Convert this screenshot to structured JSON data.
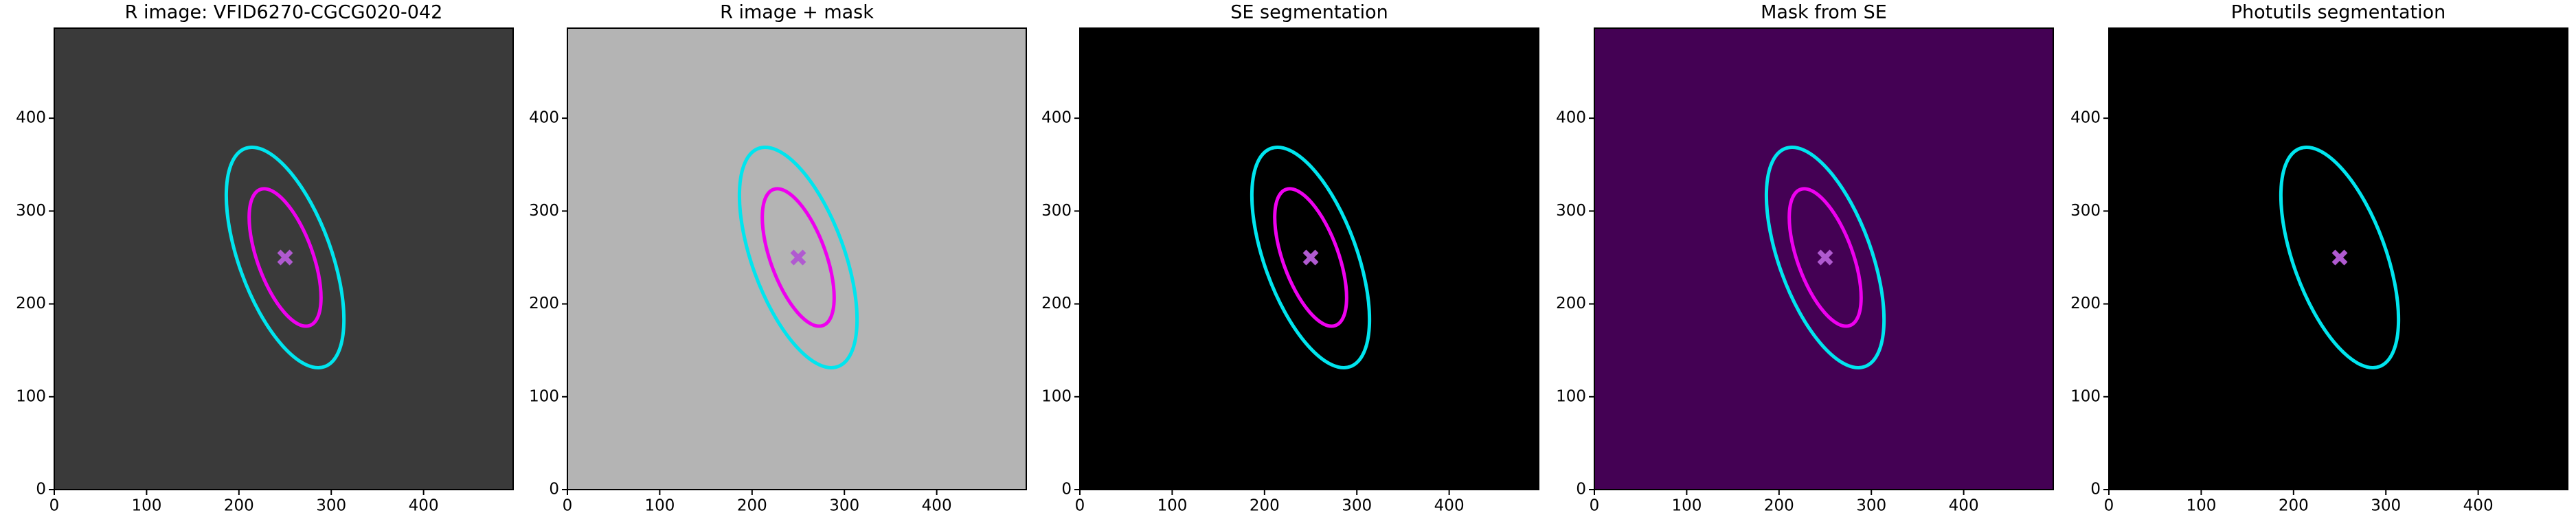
{
  "chart_data": [
    {
      "type": "image",
      "title": "R image: VFID6270-CGCG020-042",
      "background": "#3a3a3a",
      "xlim": [
        0,
        497
      ],
      "ylim": [
        0,
        497
      ],
      "xticks": [
        0,
        100,
        200,
        300,
        400
      ],
      "yticks": [
        0,
        100,
        200,
        300,
        400
      ],
      "ellipses": [
        {
          "x": 250,
          "y": 250,
          "a": 125,
          "b": 50,
          "angle": 20,
          "color": "#00e5ee"
        },
        {
          "x": 250,
          "y": 250,
          "a": 78,
          "b": 30,
          "angle": 20,
          "color": "#ee00ee"
        }
      ],
      "center": {
        "x": 250,
        "y": 250,
        "color": "#b05ad0"
      }
    },
    {
      "type": "image",
      "title": "R image + mask",
      "background": "#b4b4b4",
      "xlim": [
        0,
        497
      ],
      "ylim": [
        0,
        497
      ],
      "xticks": [
        0,
        100,
        200,
        300,
        400
      ],
      "yticks": [
        0,
        100,
        200,
        300,
        400
      ],
      "ellipses": [
        {
          "x": 250,
          "y": 250,
          "a": 125,
          "b": 50,
          "angle": 20,
          "color": "#00e5ee"
        },
        {
          "x": 250,
          "y": 250,
          "a": 78,
          "b": 30,
          "angle": 20,
          "color": "#ee00ee"
        }
      ],
      "center": {
        "x": 250,
        "y": 250,
        "color": "#b05ad0"
      }
    },
    {
      "type": "image",
      "title": "SE segmentation",
      "background": "#000000",
      "xlim": [
        0,
        497
      ],
      "ylim": [
        0,
        497
      ],
      "xticks": [
        0,
        100,
        200,
        300,
        400
      ],
      "yticks": [
        0,
        100,
        200,
        300,
        400
      ],
      "ellipses": [
        {
          "x": 250,
          "y": 250,
          "a": 125,
          "b": 50,
          "angle": 20,
          "color": "#00e5ee"
        },
        {
          "x": 250,
          "y": 250,
          "a": 78,
          "b": 30,
          "angle": 20,
          "color": "#ee00ee"
        }
      ],
      "center": {
        "x": 250,
        "y": 250,
        "color": "#b05ad0"
      }
    },
    {
      "type": "image",
      "title": "Mask from SE",
      "background": "#440154",
      "xlim": [
        0,
        497
      ],
      "ylim": [
        0,
        497
      ],
      "xticks": [
        0,
        100,
        200,
        300,
        400
      ],
      "yticks": [
        0,
        100,
        200,
        300,
        400
      ],
      "ellipses": [
        {
          "x": 250,
          "y": 250,
          "a": 125,
          "b": 50,
          "angle": 20,
          "color": "#00e5ee"
        },
        {
          "x": 250,
          "y": 250,
          "a": 78,
          "b": 30,
          "angle": 20,
          "color": "#ee00ee"
        }
      ],
      "center": {
        "x": 250,
        "y": 250,
        "color": "#b05ad0"
      }
    },
    {
      "type": "image",
      "title": "Photutils segmentation",
      "background": "#000000",
      "xlim": [
        0,
        497
      ],
      "ylim": [
        0,
        497
      ],
      "xticks": [
        0,
        100,
        200,
        300,
        400
      ],
      "yticks": [
        0,
        100,
        200,
        300,
        400
      ],
      "ellipses": [
        {
          "x": 250,
          "y": 250,
          "a": 125,
          "b": 50,
          "angle": 20,
          "color": "#00e5ee"
        }
      ],
      "center": {
        "x": 250,
        "y": 250,
        "color": "#b05ad0"
      }
    }
  ]
}
